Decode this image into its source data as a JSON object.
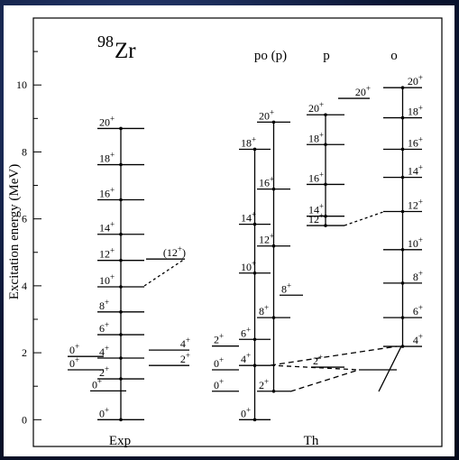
{
  "chart_data": {
    "type": "level-scheme",
    "title": {
      "mass": "98",
      "element": "Zr"
    },
    "y_label": "Excitation energy (MeV)",
    "ylim": [
      -0.8,
      12
    ],
    "yticks": [
      0,
      2,
      4,
      6,
      8,
      10
    ],
    "minor_yticks": [
      1,
      3,
      5,
      7,
      9,
      11
    ],
    "groups": [
      {
        "name": "Exp",
        "bands": [
          {
            "levels": [
              {
                "spin": "0+",
                "energy": 0
              },
              {
                "spin": "2+",
                "energy": 1.22
              },
              {
                "spin": "4+",
                "energy": 1.84
              },
              {
                "spin": "6+",
                "energy": 2.54
              },
              {
                "spin": "8+",
                "energy": 3.22
              },
              {
                "spin": "10+",
                "energy": 3.97
              },
              {
                "spin": "12+",
                "energy": 4.76
              },
              {
                "spin": "14+",
                "energy": 5.54
              },
              {
                "spin": "16+",
                "energy": 6.57
              },
              {
                "spin": "18+",
                "energy": 7.62
              },
              {
                "spin": "20+",
                "energy": 8.7
              }
            ]
          },
          {
            "levels": [
              {
                "spin": "0+",
                "energy": 0.86
              }
            ]
          },
          {
            "levels": [
              {
                "spin": "0+",
                "energy": 1.49
              },
              {
                "spin": "0+",
                "energy": 1.89
              }
            ]
          },
          {
            "levels": [
              {
                "spin": "2+",
                "energy": 1.62
              },
              {
                "spin": "4+",
                "energy": 2.08
              }
            ]
          },
          {
            "levels": [
              {
                "spin": "(12+)",
                "energy": 4.8
              }
            ]
          }
        ]
      },
      {
        "name": "Th",
        "columns": [
          "po (p)",
          "p",
          "o"
        ],
        "bands": [
          {
            "levels": [
              {
                "spin": "0+",
                "energy": 0
              },
              {
                "spin": "4+",
                "energy": 1.62
              },
              {
                "spin": "6+",
                "energy": 2.4
              },
              {
                "spin": "10+",
                "energy": 4.38
              },
              {
                "spin": "14+",
                "energy": 5.84
              },
              {
                "spin": "18+",
                "energy": 8.08
              }
            ]
          },
          {
            "levels": [
              {
                "spin": "2+",
                "energy": 0.85
              },
              {
                "spin": "8+",
                "energy": 3.05
              },
              {
                "spin": "12+",
                "energy": 5.19
              },
              {
                "spin": "16+",
                "energy": 6.89
              },
              {
                "spin": "20+",
                "energy": 8.89
              }
            ]
          },
          {
            "levels": [
              {
                "spin": "0+",
                "energy": 0.85
              },
              {
                "spin": "0+",
                "energy": 1.49
              },
              {
                "spin": "2+",
                "energy": 2.2
              }
            ]
          },
          {
            "levels": [
              {
                "spin": "8+",
                "energy": 3.72
              }
            ]
          },
          {
            "levels": [
              {
                "spin": "12+",
                "energy": 5.8
              },
              {
                "spin": "14+",
                "energy": 6.08
              },
              {
                "spin": "16+",
                "energy": 7.03
              },
              {
                "spin": "18+",
                "energy": 8.22
              },
              {
                "spin": "20+",
                "energy": 9.11
              }
            ]
          },
          {
            "levels": [
              {
                "spin": "2+",
                "energy": 1.57
              }
            ]
          },
          {
            "levels": [
              {
                "spin": "20+",
                "energy": 9.6
              }
            ]
          },
          {
            "levels": [
              {
                "spin": "4+",
                "energy": 2.19
              },
              {
                "spin": "6+",
                "energy": 3.05
              },
              {
                "spin": "8+",
                "energy": 4.08
              },
              {
                "spin": "10+",
                "energy": 5.08
              },
              {
                "spin": "12+",
                "energy": 6.22
              },
              {
                "spin": "14+",
                "energy": 7.24
              },
              {
                "spin": "16+",
                "energy": 8.08
              },
              {
                "spin": "18+",
                "energy": 9.02
              },
              {
                "spin": "20+",
                "energy": 9.92
              }
            ]
          }
        ]
      }
    ]
  }
}
